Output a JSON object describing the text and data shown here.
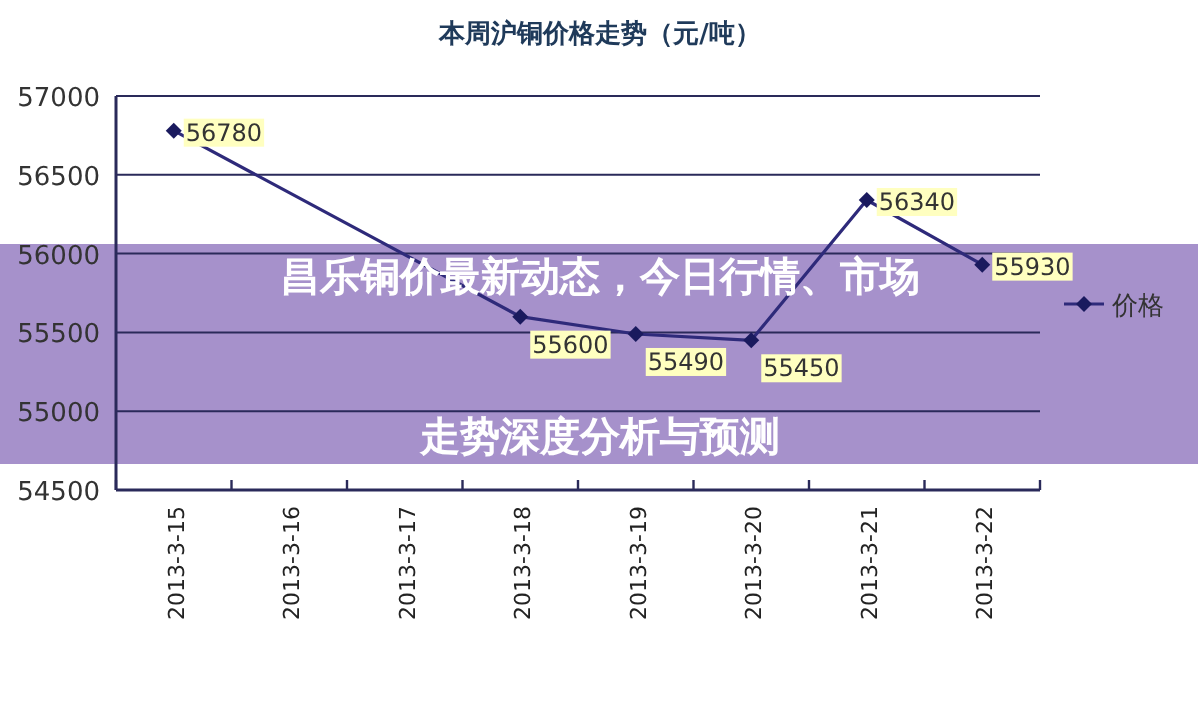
{
  "chart_data": {
    "type": "line",
    "title": "本周沪铜价格走势（元/吨）",
    "categories": [
      "2013-3-15",
      "2013-3-16",
      "2013-3-17",
      "2013-3-18",
      "2013-3-19",
      "2013-3-20",
      "2013-3-21",
      "2013-3-22"
    ],
    "series": [
      {
        "name": "价格",
        "color": "#2e2a7a",
        "values": [
          56780,
          null,
          null,
          55600,
          55490,
          55450,
          56340,
          55930
        ]
      }
    ],
    "ylim": [
      54500,
      57000
    ],
    "yticks": [
      54500,
      55000,
      55500,
      56000,
      56500,
      57000
    ],
    "grid": "y",
    "legend": "right",
    "marker": "diamond",
    "line_style": "solid",
    "data_labels": true,
    "annotations": [
      "昌乐铜价最新动态，今日行情、市场走势深度分析与预测"
    ]
  }
}
